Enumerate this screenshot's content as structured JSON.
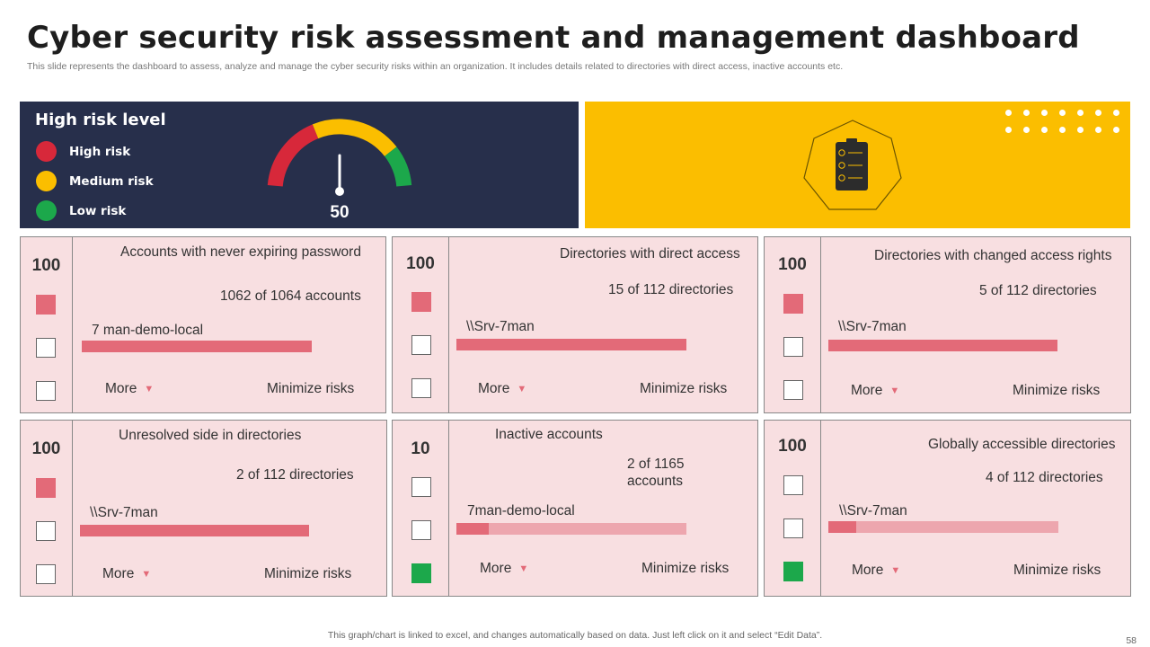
{
  "page": {
    "title": "Cyber security risk assessment and management dashboard",
    "subtitle": "This slide represents the dashboard to assess, analyze and manage the cyber security risks within an organization. It includes details related to directories with direct access, inactive accounts etc.",
    "footer_note": "This graph/chart is linked to excel,  and changes automatically based on data. Just left click on it and select “Edit Data”.",
    "page_number": "58"
  },
  "gauge": {
    "title": "High risk level",
    "value": "50",
    "value_number": 50,
    "max": 100,
    "legend": [
      {
        "label": "High risk",
        "color": "#d7283a"
      },
      {
        "label": "Medium risk",
        "color": "#fbbe00"
      },
      {
        "label": "Low risk",
        "color": "#1ca84b"
      }
    ]
  },
  "banner": {
    "background": "#fbbe00",
    "icon": "checklist-clipboard-icon"
  },
  "cards": [
    {
      "score": "100",
      "title": "Accounts with never expiring password",
      "count": "1062 of 1064 accounts",
      "host": "7 man-demo-local",
      "bar_fill": 1.0,
      "more_label": "More",
      "action_label": "Minimize risks",
      "boxes": [
        "red",
        "empty",
        "empty"
      ]
    },
    {
      "score": "100",
      "title": "Directories with direct access",
      "count": "15 of 112 directories",
      "host": "\\\\Srv-7man",
      "bar_fill": 1.0,
      "more_label": "More",
      "action_label": "Minimize risks",
      "boxes": [
        "red",
        "empty",
        "empty"
      ]
    },
    {
      "score": "100",
      "title": "Directories with changed access rights",
      "count": "5 of 112 directories",
      "host": "\\\\Srv-7man",
      "bar_fill": 1.0,
      "more_label": "More",
      "action_label": "Minimize risks",
      "boxes": [
        "red",
        "empty",
        "empty"
      ]
    },
    {
      "score": "100",
      "title": "Unresolved side in directories",
      "count": "2 of 112 directories",
      "host": "\\\\Srv-7man",
      "bar_fill": 1.0,
      "more_label": "More",
      "action_label": "Minimize risks",
      "boxes": [
        "red",
        "empty",
        "empty"
      ]
    },
    {
      "score": "10",
      "title": "Inactive accounts",
      "count": "2 of 1165\naccounts",
      "host": "7man-demo-local",
      "bar_fill": 0.14,
      "more_label": "More",
      "action_label": "Minimize risks",
      "boxes": [
        "empty",
        "empty",
        "green"
      ]
    },
    {
      "score": "100",
      "title": "Globally accessible directories",
      "count": "4 of 112 directories",
      "host": "\\\\Srv-7man",
      "bar_fill": 0.12,
      "more_label": "More",
      "action_label": "Minimize risks",
      "boxes": [
        "empty",
        "empty",
        "green"
      ]
    }
  ],
  "colors": {
    "navy": "#272f4b",
    "card_bg": "#f8dfe1",
    "bar_red": "#e36a78",
    "bar_light": "#eda6ae",
    "green": "#1ca84b"
  }
}
